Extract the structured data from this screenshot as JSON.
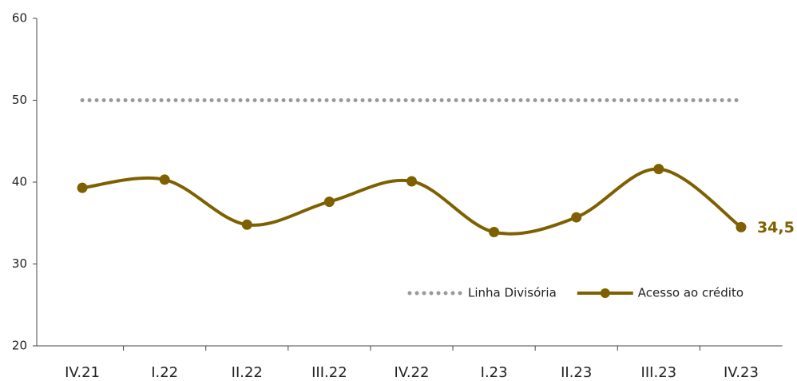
{
  "chart_data": {
    "type": "line",
    "categories": [
      "IV.21",
      "I.22",
      "II.22",
      "III.22",
      "IV.22",
      "I.23",
      "II.23",
      "III.23",
      "IV.23"
    ],
    "series": [
      {
        "name": "Linha Divisória",
        "color": "#999999",
        "style": "dotted",
        "values": [
          50,
          50,
          50,
          50,
          50,
          50,
          50,
          50,
          50
        ]
      },
      {
        "name": "Acesso ao crédito",
        "color": "#7f6000",
        "style": "solid",
        "smooth": true,
        "markers": true,
        "values": [
          39.3,
          40.3,
          34.8,
          37.6,
          40.1,
          33.9,
          35.7,
          41.6,
          34.5
        ],
        "value_labels": [
          null,
          null,
          null,
          null,
          null,
          null,
          null,
          null,
          "34,5"
        ]
      }
    ],
    "ylim": [
      20,
      60
    ],
    "yticks": [
      20,
      30,
      40,
      50,
      60
    ],
    "grid": false,
    "legend": "lower right"
  }
}
